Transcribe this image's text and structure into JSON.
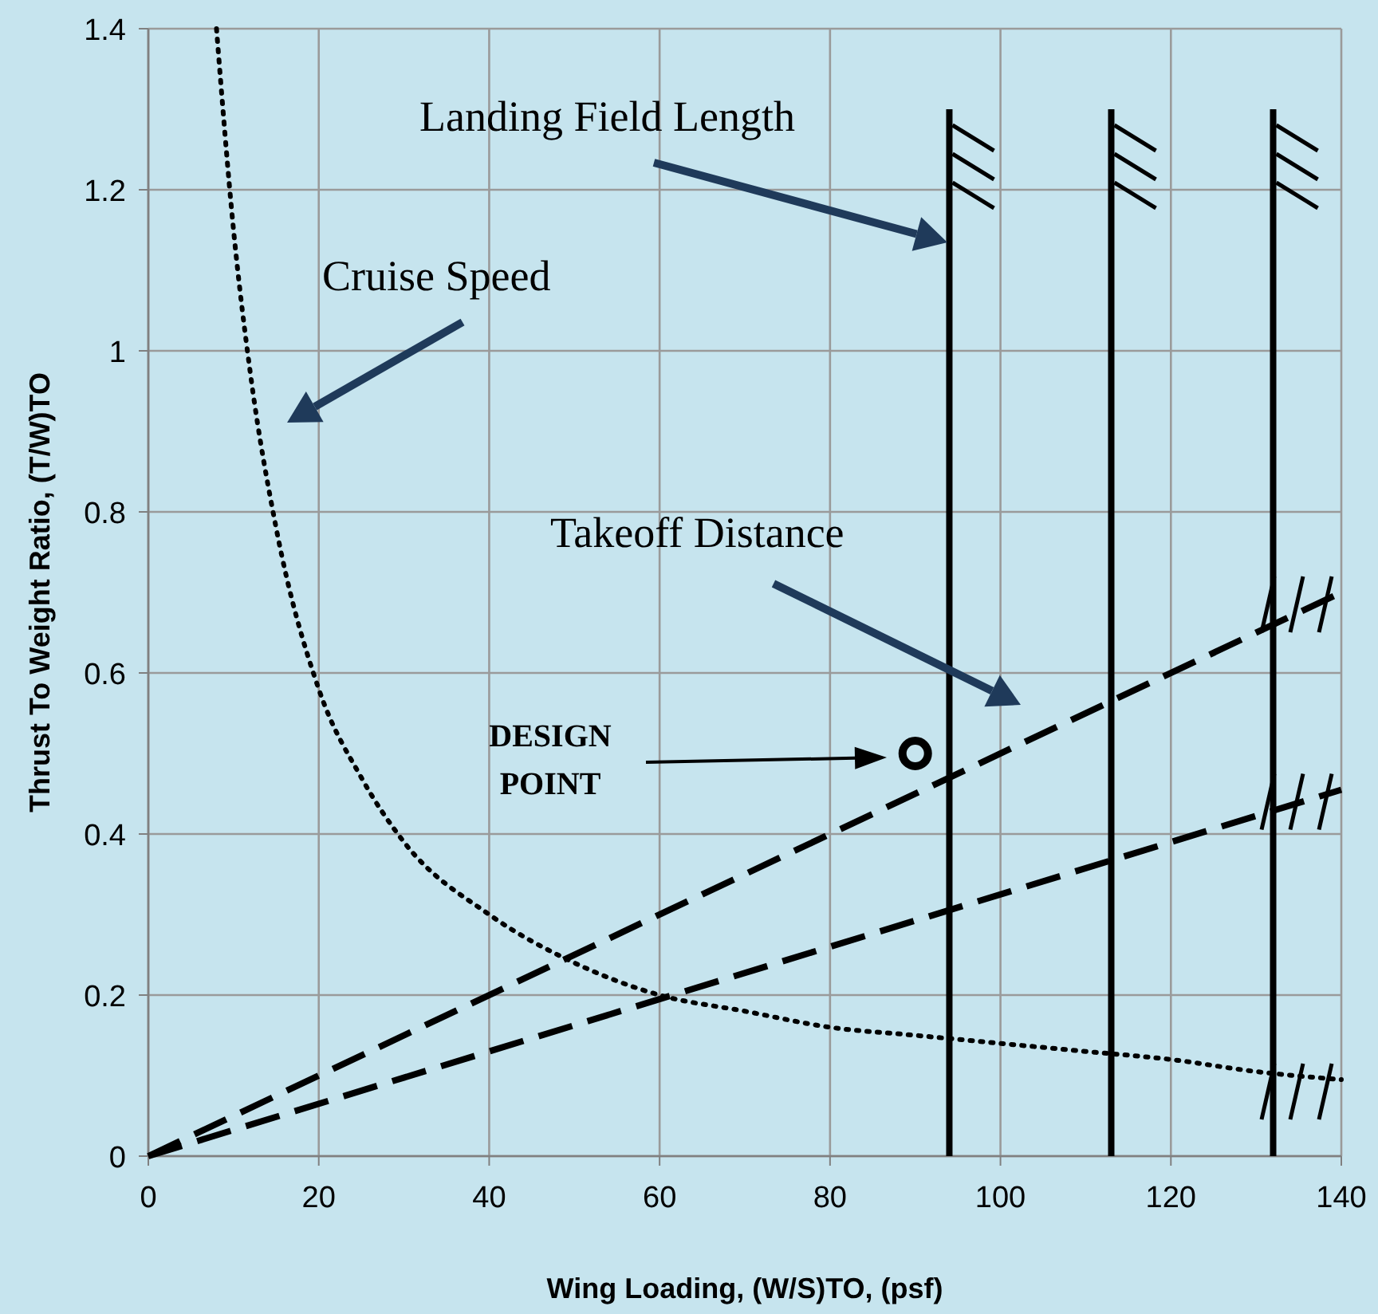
{
  "chart_data": {
    "type": "line",
    "xlabel": "Wing Loading, (W/S)TO, (psf)",
    "ylabel": "Thrust To Weight Ratio, (T/W)TO",
    "xlim": [
      0,
      140
    ],
    "xticks": [
      0,
      20,
      40,
      60,
      80,
      100,
      120,
      140
    ],
    "ylim": [
      0,
      1.4
    ],
    "yticks": [
      0,
      0.2,
      0.4,
      0.6,
      0.8,
      1,
      1.2,
      1.4
    ],
    "grid": true,
    "series": [
      {
        "line_style": "dotted",
        "color": "#000000",
        "x": [
          8,
          10,
          12,
          15,
          20,
          25,
          30,
          40,
          50,
          60,
          70,
          80,
          90,
          100,
          110,
          120,
          130,
          140
        ],
        "values": [
          1.4,
          1.15,
          0.97,
          0.78,
          0.58,
          0.47,
          0.39,
          0.3,
          0.24,
          0.2,
          0.18,
          0.16,
          0.15,
          0.14,
          0.13,
          0.12,
          0.105,
          0.095
        ]
      },
      {
        "line_style": "solid",
        "color": "#000000",
        "x": [
          94,
          94
        ],
        "values": [
          0,
          1.3
        ]
      },
      {
        "line_style": "solid",
        "color": "#000000",
        "x": [
          113,
          113
        ],
        "values": [
          0,
          1.3
        ]
      },
      {
        "line_style": "solid",
        "color": "#000000",
        "x": [
          132,
          132
        ],
        "values": [
          0,
          1.3
        ]
      },
      {
        "line_style": "dashed",
        "color": "#000000",
        "x": [
          0,
          140
        ],
        "values": [
          0,
          0.7
        ]
      },
      {
        "line_style": "dashed",
        "color": "#000000",
        "x": [
          0,
          140
        ],
        "values": [
          0,
          0.455
        ]
      },
      {
        "type": "scatter",
        "marker": "circle",
        "color": "#000000",
        "x": [
          90
        ],
        "values": [
          0.5
        ]
      }
    ],
    "annotations": [
      "Landing Field Length",
      "Cruise Speed",
      "Takeoff Distance",
      "DESIGN\nPOINT"
    ]
  }
}
